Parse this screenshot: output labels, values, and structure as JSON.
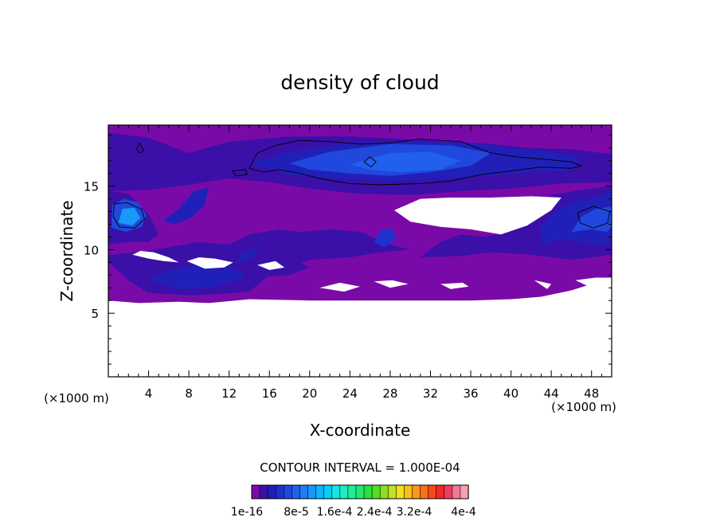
{
  "chart_data": {
    "type": "heatmap",
    "title": "density of cloud",
    "xlabel": "X-coordinate",
    "ylabel": "Z-coordinate",
    "x_unit": "(×1000 m)",
    "y_unit": "(×1000 m)",
    "xlim": [
      0,
      50
    ],
    "ylim": [
      0,
      19.8
    ],
    "x_ticks": [
      4,
      8,
      12,
      16,
      20,
      24,
      28,
      32,
      36,
      40,
      44,
      48
    ],
    "y_ticks": [
      5,
      10,
      15
    ],
    "contour_interval_text": "CONTOUR INTERVAL = 1.000E-04",
    "colorbar": {
      "colors": [
        "#7a0aa8",
        "#3a10a8",
        "#2020b8",
        "#2032cc",
        "#2048dc",
        "#2060ec",
        "#1e7cf4",
        "#1898f8",
        "#10b4fa",
        "#08cefa",
        "#18e4e4",
        "#20ecc4",
        "#20ec9a",
        "#20e870",
        "#28e040",
        "#50e020",
        "#88e020",
        "#c0e020",
        "#f0e020",
        "#f8c018",
        "#f89a18",
        "#f87018",
        "#f84818",
        "#f02828",
        "#f03c60",
        "#f07898",
        "#f8a0b0"
      ],
      "tick_labels": [
        "1e-16",
        "8e-5",
        "1.6e-4",
        "2.4e-4",
        "3.2e-4",
        "4e-4"
      ]
    },
    "regions": [
      {
        "level": 0,
        "note": "main cloud envelope",
        "poly": [
          [
            0,
            6
          ],
          [
            3,
            5.8
          ],
          [
            7,
            5.9
          ],
          [
            10,
            5.8
          ],
          [
            14,
            6.1
          ],
          [
            20,
            6
          ],
          [
            27,
            6
          ],
          [
            36,
            6
          ],
          [
            40,
            6.1
          ],
          [
            43,
            6.3
          ],
          [
            46,
            6.8
          ],
          [
            48,
            7.3
          ],
          [
            50,
            7.1
          ],
          [
            50,
            19.8
          ],
          [
            0,
            19.8
          ]
        ]
      },
      {
        "level": 1e-06,
        "note": "upper cloud layer",
        "poly": [
          [
            0,
            14.6
          ],
          [
            4,
            14.7
          ],
          [
            8,
            15.1
          ],
          [
            12,
            15.6
          ],
          [
            16,
            15.3
          ],
          [
            20,
            14.8
          ],
          [
            25,
            14.4
          ],
          [
            30,
            14.3
          ],
          [
            35,
            14.6
          ],
          [
            40,
            14.8
          ],
          [
            45,
            15.2
          ],
          [
            50,
            15.3
          ],
          [
            50,
            17.5
          ],
          [
            46,
            17.9
          ],
          [
            42,
            18
          ],
          [
            38,
            18.3
          ],
          [
            32,
            18.6
          ],
          [
            24,
            18.9
          ],
          [
            18,
            18.9
          ],
          [
            12,
            18.5
          ],
          [
            8,
            17.6
          ],
          [
            4,
            18.8
          ],
          [
            0,
            19.2
          ]
        ]
      },
      {
        "level": 2e-05,
        "poly": [
          [
            14,
            16.8
          ],
          [
            18,
            17.7
          ],
          [
            24,
            18.4
          ],
          [
            30,
            18.5
          ],
          [
            36,
            18.4
          ],
          [
            40,
            18
          ],
          [
            44,
            17.7
          ],
          [
            47,
            17.2
          ],
          [
            46,
            16.2
          ],
          [
            40,
            16
          ],
          [
            34,
            15.6
          ],
          [
            28,
            15.4
          ],
          [
            22,
            15.6
          ],
          [
            18,
            15.9
          ]
        ]
      },
      {
        "level": 6e-05,
        "poly": [
          [
            18,
            16.8
          ],
          [
            22,
            17.7
          ],
          [
            28,
            18.3
          ],
          [
            34,
            18.2
          ],
          [
            38,
            17.6
          ],
          [
            36,
            16.6
          ],
          [
            32,
            16.1
          ],
          [
            28,
            15.8
          ],
          [
            24,
            16
          ],
          [
            20,
            16.3
          ]
        ]
      },
      {
        "level": 8e-05,
        "poly": [
          [
            24,
            16.7
          ],
          [
            28,
            17.6
          ],
          [
            32,
            17.7
          ],
          [
            35,
            17
          ],
          [
            33,
            16.3
          ],
          [
            29,
            16.1
          ],
          [
            26,
            16.3
          ]
        ]
      },
      {
        "level": 1e-06,
        "note": "lower left cells",
        "poly": [
          [
            0,
            9.6
          ],
          [
            3,
            9.8
          ],
          [
            6,
            10.2
          ],
          [
            9,
            10.6
          ],
          [
            12,
            10.4
          ],
          [
            14,
            11.2
          ],
          [
            17,
            11.6
          ],
          [
            19,
            11.4
          ],
          [
            22,
            11.6
          ],
          [
            25,
            11.4
          ],
          [
            28,
            10.4
          ],
          [
            30,
            10
          ],
          [
            27,
            9.8
          ],
          [
            24,
            9.4
          ],
          [
            20,
            9.2
          ],
          [
            16,
            8
          ],
          [
            14,
            6.7
          ],
          [
            11,
            6.5
          ],
          [
            8,
            6.4
          ],
          [
            4,
            6.6
          ],
          [
            2,
            7.6
          ],
          [
            0,
            9
          ]
        ]
      },
      {
        "level": 1e-05,
        "poly": [
          [
            0,
            10.4
          ],
          [
            2,
            10.6
          ],
          [
            4,
            10.6
          ],
          [
            5,
            11.2
          ],
          [
            4,
            12.8
          ],
          [
            2,
            14.4
          ],
          [
            0,
            14.6
          ]
        ]
      },
      {
        "level": 6e-05,
        "poly": [
          [
            0.3,
            11.7
          ],
          [
            1.8,
            11.4
          ],
          [
            3.3,
            11.8
          ],
          [
            3.8,
            12.7
          ],
          [
            3,
            13.7
          ],
          [
            1.6,
            14
          ],
          [
            0.4,
            13.5
          ]
        ]
      },
      {
        "level": 0.00012,
        "poly": [
          [
            1,
            12.1
          ],
          [
            2.4,
            11.9
          ],
          [
            3.2,
            12.5
          ],
          [
            2.6,
            13.3
          ],
          [
            1.4,
            13.2
          ]
        ]
      },
      {
        "level": 3e-05,
        "poly": [
          [
            5.5,
            12.3
          ],
          [
            7,
            13.2
          ],
          [
            8.5,
            14.6
          ],
          [
            10,
            14.9
          ],
          [
            9.5,
            13.4
          ],
          [
            8,
            12.4
          ],
          [
            6.5,
            12
          ]
        ]
      },
      {
        "level": 3e-05,
        "poly": [
          [
            4,
            7.6
          ],
          [
            6,
            8.4
          ],
          [
            9,
            8.8
          ],
          [
            11,
            8.4
          ],
          [
            12.5,
            8.8
          ],
          [
            13.5,
            9.8
          ],
          [
            15,
            10.2
          ],
          [
            14.2,
            9
          ],
          [
            13,
            7.6
          ],
          [
            10,
            7
          ],
          [
            7,
            6.9
          ]
        ]
      },
      {
        "level": 1e-05,
        "poly": [
          [
            12,
            8.6
          ],
          [
            14,
            9.3
          ],
          [
            16,
            9.6
          ],
          [
            18,
            9.4
          ],
          [
            20,
            8.6
          ],
          [
            18,
            8
          ],
          [
            15,
            7.8
          ]
        ]
      },
      {
        "level": 1e-06,
        "note": "lower right cells",
        "poly": [
          [
            31,
            9.4
          ],
          [
            35,
            9.5
          ],
          [
            38,
            9.8
          ],
          [
            42,
            9.6
          ],
          [
            46,
            9.2
          ],
          [
            50,
            9.6
          ],
          [
            50,
            15
          ],
          [
            47,
            14.7
          ],
          [
            44,
            14.3
          ],
          [
            42,
            13.5
          ],
          [
            41,
            12.2
          ],
          [
            39,
            11.2
          ],
          [
            37,
            11
          ],
          [
            35,
            11.2
          ],
          [
            33,
            10.6
          ]
        ]
      },
      {
        "level": 2e-05,
        "poly": [
          [
            43,
            10.4
          ],
          [
            45,
            10.8
          ],
          [
            47,
            10.6
          ],
          [
            49,
            10.3
          ],
          [
            50,
            10.6
          ],
          [
            50,
            14.6
          ],
          [
            48,
            14
          ],
          [
            46,
            13.8
          ],
          [
            44.5,
            13
          ],
          [
            43,
            12
          ]
        ]
      },
      {
        "level": 6e-05,
        "poly": [
          [
            46,
            11.4
          ],
          [
            48,
            11.6
          ],
          [
            49.5,
            11.4
          ],
          [
            50,
            11.8
          ],
          [
            50,
            13.4
          ],
          [
            48.4,
            13.2
          ],
          [
            47,
            12.6
          ]
        ]
      },
      {
        "level": 4e-05,
        "poly": [
          [
            26.4,
            10.6
          ],
          [
            27.4,
            10.2
          ],
          [
            28.6,
            10.8
          ],
          [
            28.2,
            11.7
          ],
          [
            27,
            11.5
          ]
        ]
      }
    ],
    "white_holes": [
      [
        [
          28.4,
          13.1
        ],
        [
          30,
          12.2
        ],
        [
          33,
          11.8
        ],
        [
          36,
          11.6
        ],
        [
          39,
          11.2
        ],
        [
          41.6,
          11.9
        ],
        [
          44,
          13.1
        ],
        [
          45,
          14.1
        ],
        [
          42,
          14.2
        ],
        [
          38,
          14.1
        ],
        [
          34,
          14.1
        ],
        [
          31,
          14
        ]
      ],
      [
        [
          2.4,
          9.6
        ],
        [
          4,
          9.3
        ],
        [
          5.5,
          9.1
        ],
        [
          7,
          9
        ],
        [
          6,
          9.4
        ],
        [
          4.5,
          9.8
        ],
        [
          3.2,
          9.9
        ]
      ],
      [
        [
          7.8,
          9.1
        ],
        [
          9.6,
          8.5
        ],
        [
          11.5,
          8.6
        ],
        [
          12.4,
          9
        ],
        [
          10.6,
          9.3
        ],
        [
          9,
          9.4
        ]
      ],
      [
        [
          14.8,
          8.8
        ],
        [
          16,
          8.4
        ],
        [
          17.5,
          8.6
        ],
        [
          16.6,
          9.1
        ]
      ],
      [
        [
          21,
          7
        ],
        [
          23,
          7.4
        ],
        [
          25,
          7.1
        ],
        [
          23.4,
          6.7
        ]
      ],
      [
        [
          26.4,
          7.5
        ],
        [
          28.2,
          7.6
        ],
        [
          29.8,
          7.3
        ],
        [
          28,
          7
        ]
      ],
      [
        [
          33,
          7.3
        ],
        [
          35.2,
          7.4
        ],
        [
          35.8,
          7.1
        ],
        [
          34,
          6.9
        ]
      ],
      [
        [
          42.3,
          7.6
        ],
        [
          44,
          7.3
        ],
        [
          43.6,
          6.9
        ]
      ],
      [
        [
          46.4,
          7.6
        ],
        [
          48.4,
          7.8
        ],
        [
          50,
          7.8
        ],
        [
          50,
          7.1
        ],
        [
          48,
          7
        ]
      ]
    ],
    "contour_lines": [
      [
        [
          14,
          16.4
        ],
        [
          14.8,
          17.6
        ],
        [
          16.6,
          18.2
        ],
        [
          19,
          18.6
        ],
        [
          22,
          18.5
        ],
        [
          25,
          18.3
        ],
        [
          28,
          18.4
        ],
        [
          31,
          18.7
        ],
        [
          35,
          18.5
        ],
        [
          38,
          17.6
        ],
        [
          40.5,
          17.3
        ],
        [
          43.5,
          17.1
        ],
        [
          46,
          16.9
        ],
        [
          47,
          16.6
        ],
        [
          46,
          16.4
        ],
        [
          43,
          16.5
        ],
        [
          40,
          16.2
        ],
        [
          37,
          15.9
        ],
        [
          34,
          15.4
        ],
        [
          31,
          15.2
        ],
        [
          27,
          15.1
        ],
        [
          24,
          15.2
        ],
        [
          21,
          15.6
        ],
        [
          19,
          16
        ],
        [
          17,
          16.3
        ],
        [
          15.4,
          16.1
        ]
      ],
      [
        [
          12.3,
          16.2
        ],
        [
          13.6,
          16.3
        ],
        [
          13.8,
          15.9
        ],
        [
          12.7,
          15.8
        ]
      ],
      [
        [
          2.8,
          17.9
        ],
        [
          3.1,
          18.4
        ],
        [
          3.5,
          17.8
        ],
        [
          3.2,
          17.6
        ]
      ],
      [
        [
          0.6,
          13.6
        ],
        [
          1.8,
          13.7
        ],
        [
          3.3,
          13.2
        ],
        [
          3.6,
          12.4
        ],
        [
          2.6,
          11.7
        ],
        [
          1.1,
          11.8
        ],
        [
          0.5,
          12.6
        ]
      ],
      [
        [
          46.6,
          12.9
        ],
        [
          48.2,
          13.4
        ],
        [
          49.8,
          13
        ],
        [
          49.6,
          12.1
        ],
        [
          48.2,
          11.7
        ],
        [
          46.9,
          12.1
        ]
      ],
      [
        [
          25.4,
          16.9
        ],
        [
          26,
          17.3
        ],
        [
          26.6,
          16.9
        ],
        [
          26.1,
          16.5
        ]
      ]
    ]
  }
}
